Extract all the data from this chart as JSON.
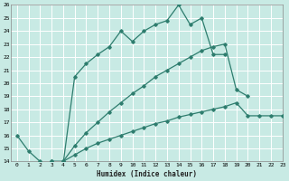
{
  "title": "",
  "xlabel": "Humidex (Indice chaleur)",
  "bg_color": "#c8eae4",
  "grid_color": "#ffffff",
  "line_color": "#2e7d6e",
  "line1_x": [
    0,
    1,
    2,
    3,
    4,
    5,
    6,
    7,
    8,
    9,
    10,
    11,
    12,
    13,
    14,
    15,
    16,
    17,
    18
  ],
  "line1_y": [
    16.0,
    14.8,
    14.0,
    13.8,
    13.8,
    20.5,
    21.5,
    22.2,
    22.8,
    24.0,
    23.2,
    24.0,
    24.5,
    24.8,
    26.0,
    24.5,
    25.0,
    22.2,
    22.2
  ],
  "line2_x": [
    3,
    4,
    5,
    6,
    7,
    8,
    9,
    10,
    11,
    12,
    13,
    14,
    15,
    16,
    17,
    18,
    19,
    20
  ],
  "line2_y": [
    14.0,
    14.0,
    15.2,
    16.2,
    17.0,
    17.8,
    18.5,
    19.2,
    19.8,
    20.5,
    21.0,
    21.5,
    22.0,
    22.5,
    22.8,
    23.0,
    19.5,
    19.0
  ],
  "line3_x": [
    3,
    4,
    5,
    6,
    7,
    8,
    9,
    10,
    11,
    12,
    13,
    14,
    15,
    16,
    17,
    18,
    19,
    20,
    21,
    22,
    23
  ],
  "line3_y": [
    14.0,
    14.0,
    14.5,
    15.0,
    15.4,
    15.7,
    16.0,
    16.3,
    16.6,
    16.9,
    17.1,
    17.4,
    17.6,
    17.8,
    18.0,
    18.2,
    18.5,
    17.5,
    17.5,
    17.5,
    17.5
  ],
  "ylim": [
    14,
    26
  ],
  "xlim": [
    -0.5,
    23
  ],
  "yticks": [
    14,
    15,
    16,
    17,
    18,
    19,
    20,
    21,
    22,
    23,
    24,
    25,
    26
  ],
  "xticks": [
    0,
    1,
    2,
    3,
    4,
    5,
    6,
    7,
    8,
    9,
    10,
    11,
    12,
    13,
    14,
    15,
    16,
    17,
    18,
    19,
    20,
    21,
    22,
    23
  ]
}
